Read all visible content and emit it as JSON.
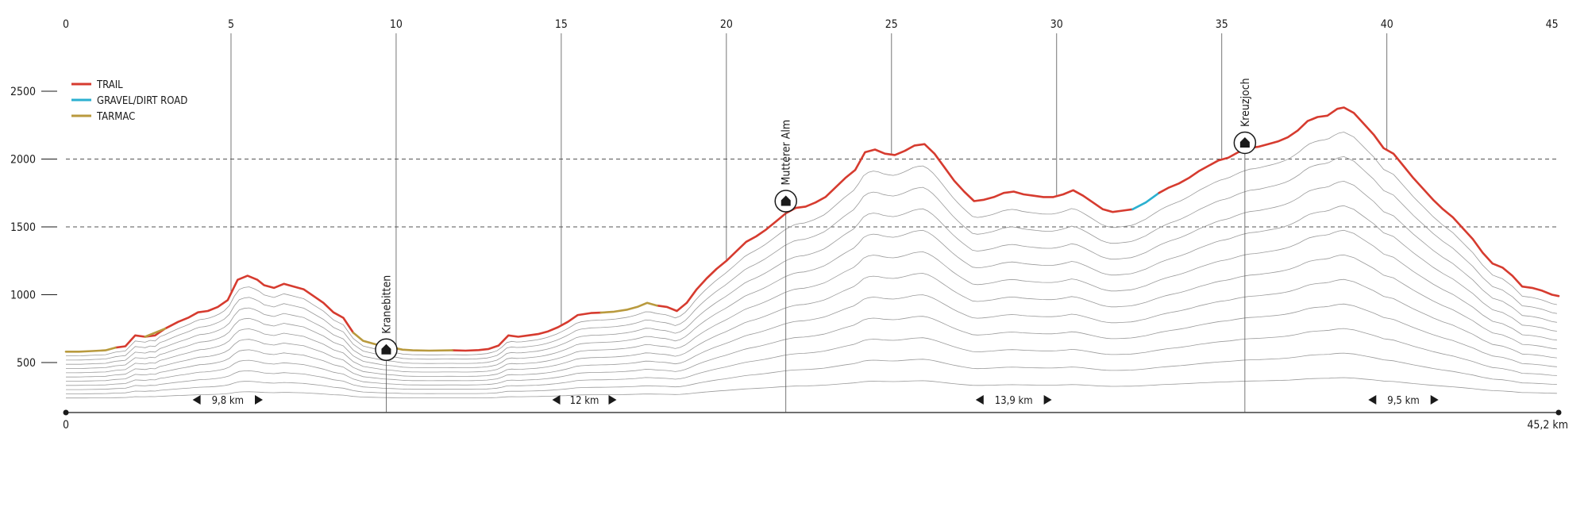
{
  "chart_data": {
    "type": "line",
    "x_unit_label": "45,2 km",
    "x_top_ticks": [
      0,
      5,
      10,
      15,
      20,
      25,
      30,
      35,
      40,
      45
    ],
    "x_bottom_labels": [
      "0",
      "45,2 km"
    ],
    "y_ticks": [
      500,
      1000,
      1500,
      2000,
      2500
    ],
    "y_dashed_gridlines": [
      1500,
      2000
    ],
    "xlim": [
      0,
      45.2
    ],
    "ylim": [
      150,
      2600
    ],
    "legend": [
      {
        "label": "TRAIL",
        "color": "#d63b2f"
      },
      {
        "label": "GRAVEL/DIRT ROAD",
        "color": "#2bb0d0"
      },
      {
        "label": "TARMAC",
        "color": "#b99a3e"
      }
    ],
    "series": [
      {
        "name": "TRAIL",
        "color": "#d63b2f",
        "x": [
          1.5,
          1.8,
          2.1,
          2.4,
          2.7,
          3.0,
          3.4,
          3.7,
          4.0,
          4.3,
          4.6,
          4.9,
          5.2,
          5.5,
          5.8,
          6.0,
          6.3,
          6.6,
          6.9,
          7.2,
          7.5,
          7.8,
          8.1,
          8.4,
          8.7
        ],
        "y": [
          610,
          620,
          700,
          690,
          700,
          750,
          800,
          830,
          870,
          880,
          910,
          960,
          1110,
          1140,
          1110,
          1070,
          1050,
          1080,
          1060,
          1040,
          990,
          940,
          870,
          830,
          720
        ]
      },
      {
        "name": "TRAIL",
        "color": "#d63b2f",
        "x": [
          11.7,
          12.1,
          12.5,
          12.8,
          13.1,
          13.4,
          13.7,
          14.0,
          14.3,
          14.6,
          14.9,
          15.2,
          15.5,
          15.9,
          16.2
        ],
        "y": [
          590,
          588,
          592,
          600,
          625,
          700,
          690,
          700,
          710,
          730,
          760,
          800,
          850,
          865,
          868
        ]
      },
      {
        "name": "TRAIL",
        "color": "#d63b2f",
        "x": [
          17.9,
          18.2,
          18.5,
          18.8,
          19.1,
          19.4,
          19.7,
          20.0,
          20.3,
          20.6,
          20.9,
          21.2,
          21.5,
          21.8,
          22.1,
          22.4,
          22.7,
          23.0,
          23.3,
          23.6,
          23.9,
          24.2,
          24.5,
          24.8,
          25.1,
          25.4,
          25.7,
          26.0,
          26.3,
          26.6,
          26.9,
          27.2,
          27.5,
          27.8,
          28.1,
          28.4,
          28.7,
          29.0,
          29.3,
          29.6,
          29.9,
          30.2,
          30.5,
          30.8,
          31.1,
          31.4,
          31.7,
          32.0,
          32.3
        ],
        "y": [
          920,
          910,
          880,
          940,
          1040,
          1120,
          1190,
          1250,
          1320,
          1390,
          1430,
          1480,
          1540,
          1600,
          1640,
          1650,
          1680,
          1720,
          1790,
          1860,
          1920,
          2050,
          2070,
          2040,
          2030,
          2060,
          2100,
          2110,
          2040,
          1940,
          1840,
          1760,
          1690,
          1700,
          1720,
          1750,
          1760,
          1740,
          1730,
          1720,
          1720,
          1740,
          1770,
          1730,
          1680,
          1630,
          1610,
          1620,
          1630
        ]
      },
      {
        "name": "GRAVEL/DIRT ROAD",
        "color": "#2bb0d0",
        "x": [
          32.3,
          32.7,
          33.1
        ],
        "y": [
          1630,
          1680,
          1750
        ]
      },
      {
        "name": "TRAIL",
        "color": "#d63b2f",
        "x": [
          33.1,
          33.4,
          33.7,
          34.0,
          34.3,
          34.6,
          34.9,
          35.2,
          35.5,
          35.8,
          36.1,
          36.4,
          36.7,
          37.0,
          37.3,
          37.6,
          37.9,
          38.2,
          38.5,
          38.7,
          39.0,
          39.3,
          39.6,
          39.9,
          40.2,
          40.5,
          40.8,
          41.1,
          41.4,
          41.7,
          42.0,
          42.3,
          42.6,
          42.9,
          43.2,
          43.5,
          43.8,
          44.1,
          44.4,
          44.7,
          45.0,
          45.2
        ],
        "y": [
          1750,
          1790,
          1820,
          1860,
          1910,
          1950,
          1990,
          2010,
          2050,
          2080,
          2090,
          2110,
          2130,
          2160,
          2210,
          2280,
          2310,
          2320,
          2370,
          2380,
          2340,
          2260,
          2180,
          2080,
          2040,
          1950,
          1860,
          1780,
          1700,
          1630,
          1570,
          1490,
          1410,
          1310,
          1230,
          1200,
          1140,
          1060,
          1050,
          1030,
          1000,
          990
        ]
      },
      {
        "name": "TARMAC",
        "color": "#b99a3e",
        "x": [
          0.0,
          0.4,
          0.8,
          1.2,
          1.5
        ],
        "y": [
          580,
          580,
          585,
          590,
          610
        ]
      },
      {
        "name": "TARMAC",
        "color": "#b99a3e",
        "x": [
          2.4,
          2.6,
          2.8,
          3.0
        ],
        "y": [
          690,
          710,
          730,
          750
        ]
      },
      {
        "name": "TARMAC",
        "color": "#b99a3e",
        "x": [
          8.7,
          9.0,
          9.3,
          9.6,
          9.9,
          10.2,
          10.5,
          11.0,
          11.7
        ],
        "y": [
          720,
          660,
          640,
          620,
          610,
          595,
          590,
          588,
          590
        ]
      },
      {
        "name": "TARMAC",
        "color": "#b99a3e",
        "x": [
          16.2,
          16.6,
          17.0,
          17.3,
          17.6,
          17.9
        ],
        "y": [
          868,
          875,
          890,
          910,
          940,
          920
        ]
      }
    ],
    "huts": [
      {
        "label": "Kranebitten",
        "km": 9.7,
        "elevation": 595
      },
      {
        "label": "Mutterer Alm",
        "km": 21.8,
        "elevation": 1690
      },
      {
        "label": "Kreuzjoch",
        "km": 35.7,
        "elevation": 2120
      }
    ],
    "segments": [
      {
        "label": "9,8 km",
        "km": 4.9
      },
      {
        "label": "12 km",
        "km": 15.7
      },
      {
        "label": "13,9 km",
        "km": 28.7
      },
      {
        "label": "9,5 km",
        "km": 40.5
      }
    ],
    "contour_count": 11,
    "colors": {
      "trail": "#d63b2f",
      "gravel": "#2bb0d0",
      "tarmac": "#b99a3e",
      "contour": "#9a9a9a",
      "axis": "#1a1a1a",
      "grid": "#555555"
    }
  }
}
